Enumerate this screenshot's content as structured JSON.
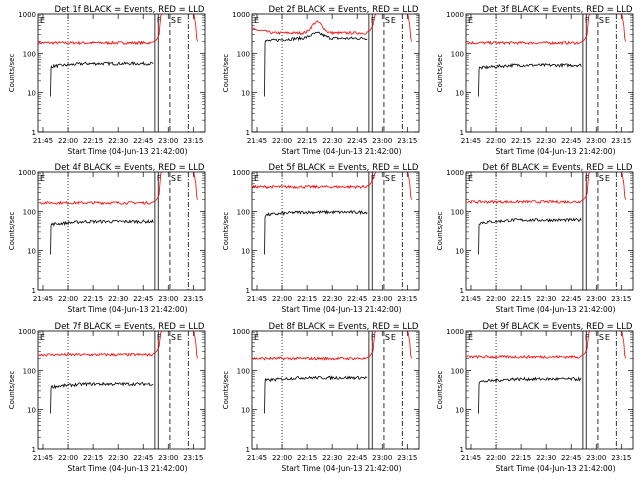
{
  "chart_data": {
    "type": "line",
    "ylabel": "Counts/sec",
    "xlabel": "Start Time (04-Jun-13 21:42:00)",
    "x_ticks": [
      "21:45",
      "22:00",
      "22:15",
      "22:30",
      "22:45",
      "23:00",
      "23:15"
    ],
    "x_ticks_alt": [
      "21:45",
      "22:00",
      "22:15",
      "22:30",
      "22:45",
      "23:00",
      "23:15"
    ],
    "y_ticks": [
      "1",
      "10",
      "100",
      "1000"
    ],
    "x_unit": "minutes after 21:42:00",
    "xlim": [
      0,
      100
    ],
    "ylim": [
      1,
      1000
    ],
    "yscale": "log",
    "series_colors": {
      "events": "#000000",
      "lld": "#ff0000"
    },
    "markers": {
      "left": "E",
      "F": "F",
      "S": "S",
      "E2": "E"
    },
    "panels": [
      {
        "title": "Det 1f BLACK = Events, RED = LLD",
        "xlabel": "Start Time (04-Jun-13 21:42:00)",
        "events_level": 55,
        "lld_level": 185,
        "lld_bump": false,
        "lld_high_start": false,
        "evt_bump": false
      },
      {
        "title": "Det 2f BLACK = Events, RED = LLD",
        "xlabel": "Start Time (04-Jun-13 21:42:00)",
        "events_level": 240,
        "lld_level": 330,
        "lld_bump": true,
        "lld_high_start": true,
        "evt_bump": true
      },
      {
        "title": "Det 3f BLACK = Events, RED = LLD",
        "xlabel": "Start Time (04-Jun-13 21:42:00)",
        "events_level": 50,
        "lld_level": 185,
        "lld_bump": false,
        "lld_high_start": false,
        "evt_bump": false
      },
      {
        "title": "Det 4f BLACK = Events, RED = LLD",
        "xlabel": "Start Time (04-Jun-13 21:42:00)",
        "events_level": 55,
        "lld_level": 165,
        "lld_bump": false,
        "lld_high_start": false,
        "evt_bump": false
      },
      {
        "title": "Det 5f BLACK = Events, RED = LLD",
        "xlabel": "Start Time (04-Jun-13 21:42:00)",
        "events_level": 95,
        "lld_level": 420,
        "lld_bump": false,
        "lld_high_start": false,
        "evt_bump": false
      },
      {
        "title": "Det 6f BLACK = Events, RED = LLD",
        "xlabel": "Start Time (04-Jun-13 21:42:00)",
        "events_level": 60,
        "lld_level": 175,
        "lld_bump": false,
        "lld_high_start": false,
        "evt_bump": false
      },
      {
        "title": "Det 7f BLACK = Events, RED = LLD",
        "xlabel": "Start Time (04-Jun-13 21:42:00)",
        "events_level": 45,
        "lld_level": 250,
        "lld_bump": false,
        "lld_high_start": false,
        "evt_bump": false
      },
      {
        "title": "Det 8f BLACK = Events, RED = LLD",
        "xlabel": "Start Time (04-Jun-13 21:42:00)",
        "events_level": 65,
        "lld_level": 200,
        "lld_bump": false,
        "lld_high_start": false,
        "evt_bump": false
      },
      {
        "title": "Det 9f BLACK = Events, RED = LLD",
        "xlabel": "Start Time (04-Jun-13 21:42:00)",
        "events_level": 60,
        "lld_level": 220,
        "lld_bump": false,
        "lld_high_start": false,
        "evt_bump": false
      }
    ]
  }
}
